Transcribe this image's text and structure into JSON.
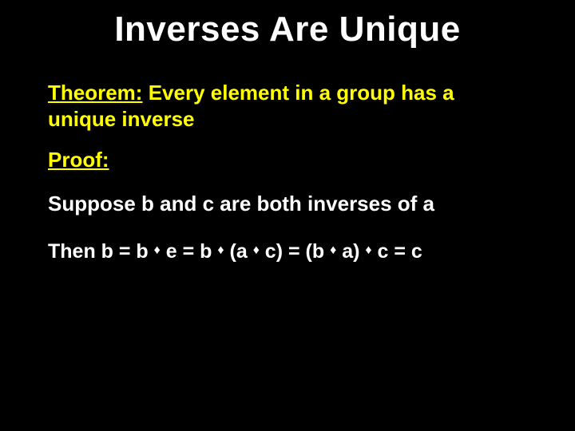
{
  "colors": {
    "background": "#000000",
    "title": "#ffffff",
    "highlight": "#ffff00",
    "body_text": "#ffffff"
  },
  "typography": {
    "title_fontsize": 44,
    "body_fontsize": 26,
    "equation_fontsize": 25,
    "font_family": "Comic Sans MS"
  },
  "title": "Inverses Are Unique",
  "theorem": {
    "label": "Theorem:",
    "statement": " Every element in a group has a unique inverse"
  },
  "proof": {
    "label": "Proof:",
    "suppose": "Suppose b and c are both inverses of a",
    "eq": {
      "p1": "Then b = b ",
      "p2": " e = b ",
      "p3": " (a ",
      "p4": " c) = (b ",
      "p5": " a) ",
      "p6": " c = c"
    }
  },
  "diamond": "♦"
}
